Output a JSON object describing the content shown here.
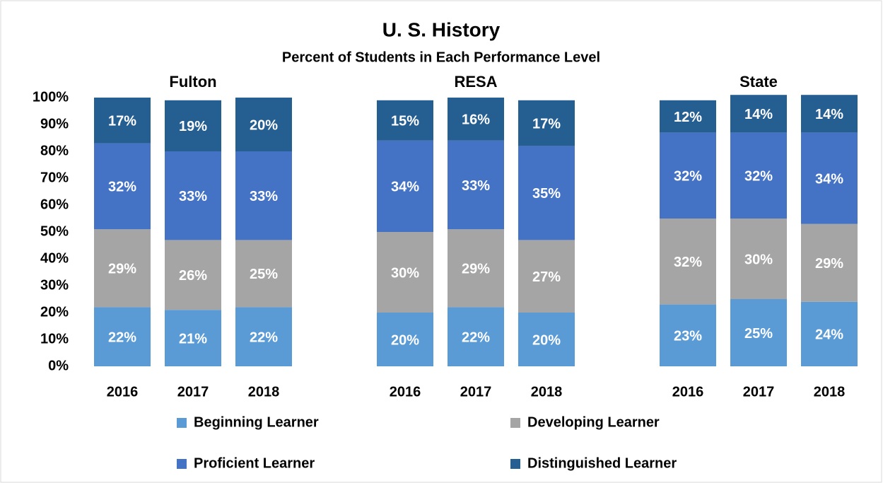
{
  "chart_data": {
    "type": "stacked_bar",
    "title": "U. S. History",
    "subtitle": "Percent of Students in Each Performance Level",
    "groups": [
      "Fulton",
      "RESA",
      "State"
    ],
    "categories": [
      "2016",
      "2017",
      "2018",
      "2016",
      "2017",
      "2018",
      "2016",
      "2017",
      "2018"
    ],
    "series": [
      {
        "name": "Beginning Learner",
        "color": "#5b9bd5",
        "values": [
          22,
          21,
          22,
          20,
          22,
          20,
          23,
          25,
          24
        ],
        "value_labels": [
          "22%",
          "21%",
          "22%",
          "20%",
          "22%",
          "20%",
          "23%",
          "25%",
          "24%"
        ]
      },
      {
        "name": "Developing Learner",
        "color": "#a5a5a5",
        "values": [
          29,
          26,
          25,
          30,
          29,
          27,
          32,
          30,
          29
        ],
        "value_labels": [
          "29%",
          "26%",
          "25%",
          "30%",
          "29%",
          "27%",
          "32%",
          "30%",
          "29%"
        ]
      },
      {
        "name": "Proficient Learner",
        "color": "#4472c4",
        "values": [
          32,
          33,
          33,
          34,
          33,
          35,
          32,
          32,
          34
        ],
        "value_labels": [
          "32%",
          "33%",
          "33%",
          "34%",
          "33%",
          "35%",
          "32%",
          "32%",
          "34%"
        ]
      },
      {
        "name": "Distinguished Learner",
        "color": "#255e91",
        "values": [
          17,
          19,
          20,
          15,
          16,
          17,
          12,
          14,
          14
        ],
        "value_labels": [
          "17%",
          "19%",
          "20%",
          "15%",
          "16%",
          "17%",
          "12%",
          "14%",
          "14%"
        ]
      }
    ],
    "ylim": [
      0,
      100
    ],
    "yticks": [
      {
        "value": 0,
        "label": "0%"
      },
      {
        "value": 10,
        "label": "10%"
      },
      {
        "value": 20,
        "label": "20%"
      },
      {
        "value": 30,
        "label": "30%"
      },
      {
        "value": 40,
        "label": "40%"
      },
      {
        "value": 50,
        "label": "50%"
      },
      {
        "value": 60,
        "label": "60%"
      },
      {
        "value": 70,
        "label": "70%"
      },
      {
        "value": 80,
        "label": "80%"
      },
      {
        "value": 90,
        "label": "90%"
      },
      {
        "value": 100,
        "label": "100%"
      }
    ],
    "legend": "bottom"
  }
}
